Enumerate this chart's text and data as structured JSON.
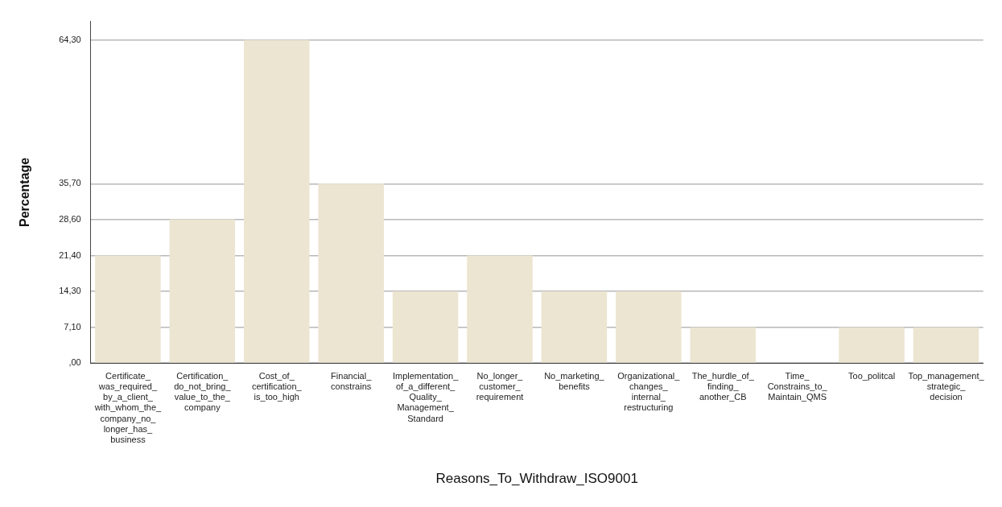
{
  "chart_data": {
    "type": "bar",
    "xlabel": "Reasons_To_Withdraw_ISO9001",
    "ylabel": "Percentage",
    "categories": [
      "Certificate_was_required_by_a_client_with_whom_the_company_no_longer_has_business",
      "Certification_do_not_bring_value_to_the_company",
      "Cost_of_certification_is_too_high",
      "Financial_constrains",
      "Implementation_of_a_different_Quality_Management_Standard",
      "No_longer_customer_requirement",
      "No_marketing_benefits",
      "Organizational_changes_internal_restructuring",
      "The_hurdle_of_finding_another_CB",
      "Time_Constrains_to_Maintain_QMS",
      "Too_politcal",
      "Top_management_strategic_decision"
    ],
    "values": [
      21.4,
      28.6,
      64.3,
      35.7,
      14.3,
      21.4,
      14.3,
      14.3,
      7.1,
      0,
      7.1,
      7.1
    ],
    "color": "#ece5d1",
    "ylim": [
      0,
      68
    ],
    "yticks": [
      {
        "value": 0,
        "label": ",00"
      },
      {
        "value": 7.1,
        "label": "7,10"
      },
      {
        "value": 14.3,
        "label": "14,30"
      },
      {
        "value": 21.4,
        "label": "21,40"
      },
      {
        "value": 28.6,
        "label": "28,60"
      },
      {
        "value": 35.7,
        "label": "35,70"
      },
      {
        "value": 64.3,
        "label": "64,30"
      }
    ],
    "grid": "y",
    "legend": false
  }
}
